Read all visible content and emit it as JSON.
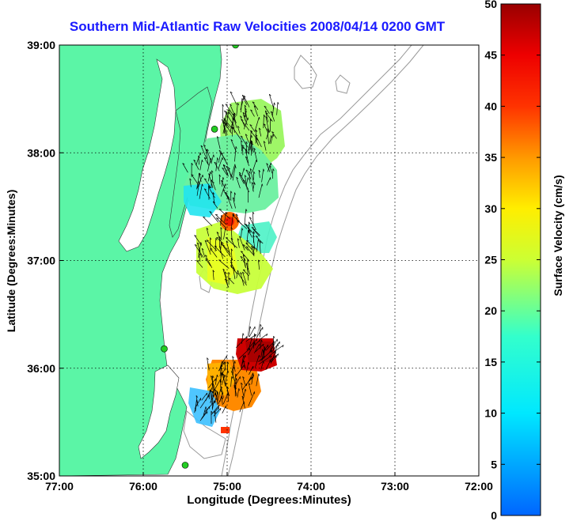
{
  "title": "Southern Mid-Atlantic Raw Velocities 2008/04/14 0200 GMT",
  "xlabel": "Longitude (Degrees:Minutes)",
  "ylabel": "Latitude (Degrees:Minutes)",
  "colorbar": {
    "label": "Surface Velocity (cm/s)",
    "ticks": [
      "0",
      "5",
      "10",
      "15",
      "20",
      "25",
      "30",
      "35",
      "40",
      "45",
      "50"
    ],
    "range": [
      0,
      50
    ]
  },
  "x_ticks": [
    "77:00",
    "76:00",
    "75:00",
    "74:00",
    "73:00",
    "72:00"
  ],
  "y_ticks": [
    "39:00",
    "38:00",
    "37:00",
    "36:00",
    "35:00"
  ],
  "colors": {
    "land": "#5bf5a6",
    "station": "#22cc22",
    "title": "#1a1aff",
    "bathymetry": "#999999"
  },
  "stations": [
    {
      "lon": -74.9,
      "lat": 39.0
    },
    {
      "lon": -75.15,
      "lat": 38.22
    },
    {
      "lon": -75.75,
      "lat": 36.18
    },
    {
      "lon": -75.5,
      "lat": 35.1
    }
  ]
}
